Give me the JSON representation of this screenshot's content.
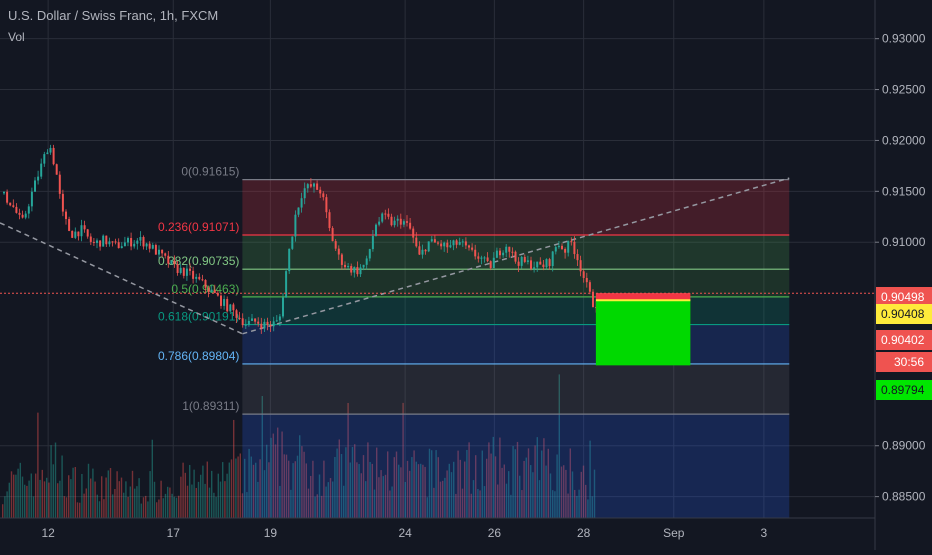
{
  "header": {
    "title": "U.S. Dollar / Swiss Franc, 1h, FXCM",
    "indicator": "Vol"
  },
  "colors": {
    "background": "#131722",
    "grid": "#2a2e39",
    "up_candle": "#26a69a",
    "down_candle": "#ef5350",
    "volume_up": "#26a69a",
    "volume_down": "#ef5350",
    "price_line": "#ef5350",
    "trendline": "#9598a1"
  },
  "chart_data": {
    "type": "candlestick",
    "title": "U.S. Dollar / Swiss Franc, 1h, FXCM",
    "ylim": [
      0.8829,
      0.9338
    ],
    "y_ticks": [
      {
        "value": 0.93,
        "label": "0.93000"
      },
      {
        "value": 0.925,
        "label": "0.92500"
      },
      {
        "value": 0.92,
        "label": "0.92000"
      },
      {
        "value": 0.915,
        "label": "0.91500"
      },
      {
        "value": 0.91,
        "label": "0.91000"
      },
      {
        "value": 0.89,
        "label": "0.89000"
      },
      {
        "value": 0.885,
        "label": "0.88500"
      }
    ],
    "x_ticks": [
      {
        "pos": 0.055,
        "label": "12"
      },
      {
        "pos": 0.198,
        "label": "17"
      },
      {
        "pos": 0.309,
        "label": "19"
      },
      {
        "pos": 0.463,
        "label": "24"
      },
      {
        "pos": 0.565,
        "label": "26"
      },
      {
        "pos": 0.667,
        "label": "28"
      },
      {
        "pos": 0.77,
        "label": "Sep"
      },
      {
        "pos": 0.873,
        "label": "3"
      }
    ],
    "price_labels": [
      {
        "value": 0.90498,
        "label": "0.90498",
        "bg": "#ef5350",
        "fg": "#ffffff"
      },
      {
        "value": 0.90408,
        "label": "0.90408",
        "bg": "#ffeb3b",
        "fg": "#131722"
      },
      {
        "value": 0.90402,
        "label": "0.90402",
        "bg": "#ef5350",
        "fg": "#ffffff"
      },
      {
        "value": 0.8979,
        "label": "0.89794",
        "bg": "#00e600",
        "fg": "#131722"
      }
    ],
    "countdown": "30:56",
    "fib_retracement": {
      "x_start": 0.277,
      "x_end": 0.902,
      "levels": [
        {
          "ratio": "0",
          "value": 0.91615,
          "label": "0(0.91615)",
          "color": "#787b86",
          "fill": "rgba(242,54,69,0.22)"
        },
        {
          "ratio": "0.236",
          "value": 0.91071,
          "label": "0.236(0.91071)",
          "color": "#f23645",
          "fill": "rgba(76,175,80,0.22)"
        },
        {
          "ratio": "0.382",
          "value": 0.90735,
          "label": "0.382(0.90735)",
          "color": "#81c784",
          "fill": "rgba(76,175,80,0.18)"
        },
        {
          "ratio": "0.5",
          "value": 0.90463,
          "label": "0.5(0.90463)",
          "color": "#4caf50",
          "fill": "rgba(8,153,129,0.22)"
        },
        {
          "ratio": "0.618",
          "value": 0.90191,
          "label": "0.618(0.90191)",
          "color": "#089981",
          "fill": "rgba(41,98,255,0.2)"
        },
        {
          "ratio": "0.786",
          "value": 0.89804,
          "label": "0.786(0.89804)",
          "color": "#64b5f6",
          "fill": "rgba(120,123,134,0.18)"
        },
        {
          "ratio": "1",
          "value": 0.89311,
          "label": "1(0.89311)",
          "color": "#787b86",
          "fill": "rgba(41,98,255,0.22)"
        }
      ],
      "bottom_fill_to": 0.8829
    },
    "position_box": {
      "x_start": 0.681,
      "x_end": 0.789,
      "stop": 0.905,
      "entry": 0.9043,
      "target": 0.8979
    },
    "trendlines": [
      {
        "from": [
          0.0,
          0.9119
        ],
        "to": [
          0.277,
          0.901
        ]
      },
      {
        "from": [
          0.277,
          0.901
        ],
        "to": [
          0.902,
          0.9163
        ]
      }
    ],
    "last_price": 0.90408,
    "candle_path": [
      [
        0.0,
        0.9148
      ],
      [
        0.012,
        0.9138
      ],
      [
        0.024,
        0.9118
      ],
      [
        0.036,
        0.915
      ],
      [
        0.046,
        0.9175
      ],
      [
        0.055,
        0.9198
      ],
      [
        0.063,
        0.917
      ],
      [
        0.07,
        0.9128
      ],
      [
        0.08,
        0.9108
      ],
      [
        0.092,
        0.9112
      ],
      [
        0.105,
        0.9098
      ],
      [
        0.118,
        0.9102
      ],
      [
        0.13,
        0.9096
      ],
      [
        0.145,
        0.91
      ],
      [
        0.16,
        0.9102
      ],
      [
        0.172,
        0.9095
      ],
      [
        0.185,
        0.9085
      ],
      [
        0.198,
        0.9075
      ],
      [
        0.212,
        0.907
      ],
      [
        0.226,
        0.9062
      ],
      [
        0.24,
        0.9052
      ],
      [
        0.254,
        0.904
      ],
      [
        0.268,
        0.903
      ],
      [
        0.28,
        0.902
      ],
      [
        0.292,
        0.9022
      ],
      [
        0.304,
        0.9018
      ],
      [
        0.318,
        0.9022
      ],
      [
        0.328,
        0.9085
      ],
      [
        0.336,
        0.9125
      ],
      [
        0.345,
        0.9152
      ],
      [
        0.356,
        0.9155
      ],
      [
        0.366,
        0.915
      ],
      [
        0.376,
        0.911
      ],
      [
        0.386,
        0.9085
      ],
      [
        0.396,
        0.9075
      ],
      [
        0.408,
        0.9072
      ],
      [
        0.418,
        0.908
      ],
      [
        0.428,
        0.9118
      ],
      [
        0.438,
        0.9125
      ],
      [
        0.448,
        0.9118
      ],
      [
        0.458,
        0.9122
      ],
      [
        0.468,
        0.9112
      ],
      [
        0.478,
        0.9085
      ],
      [
        0.488,
        0.91
      ],
      [
        0.5,
        0.9098
      ],
      [
        0.512,
        0.9095
      ],
      [
        0.524,
        0.91
      ],
      [
        0.536,
        0.909
      ],
      [
        0.548,
        0.9085
      ],
      [
        0.558,
        0.9075
      ],
      [
        0.568,
        0.909
      ],
      [
        0.578,
        0.9098
      ],
      [
        0.588,
        0.9082
      ],
      [
        0.598,
        0.908
      ],
      [
        0.608,
        0.9078
      ],
      [
        0.618,
        0.9076
      ],
      [
        0.628,
        0.9082
      ],
      [
        0.636,
        0.91
      ],
      [
        0.644,
        0.9092
      ],
      [
        0.652,
        0.91
      ],
      [
        0.66,
        0.9082
      ],
      [
        0.668,
        0.906
      ],
      [
        0.676,
        0.904
      ],
      [
        0.681,
        0.9041
      ]
    ],
    "volume_profile": [
      [
        0.0,
        0.35
      ],
      [
        0.03,
        0.45
      ],
      [
        0.06,
        0.6
      ],
      [
        0.08,
        0.4
      ],
      [
        0.12,
        0.38
      ],
      [
        0.16,
        0.35
      ],
      [
        0.2,
        0.4
      ],
      [
        0.24,
        0.42
      ],
      [
        0.28,
        0.5
      ],
      [
        0.32,
        0.7
      ],
      [
        0.36,
        0.55
      ],
      [
        0.4,
        0.6
      ],
      [
        0.44,
        0.55
      ],
      [
        0.48,
        0.5
      ],
      [
        0.52,
        0.55
      ],
      [
        0.56,
        0.6
      ],
      [
        0.6,
        0.55
      ],
      [
        0.64,
        0.7
      ],
      [
        0.66,
        0.5
      ],
      [
        0.681,
        0.45
      ]
    ]
  }
}
